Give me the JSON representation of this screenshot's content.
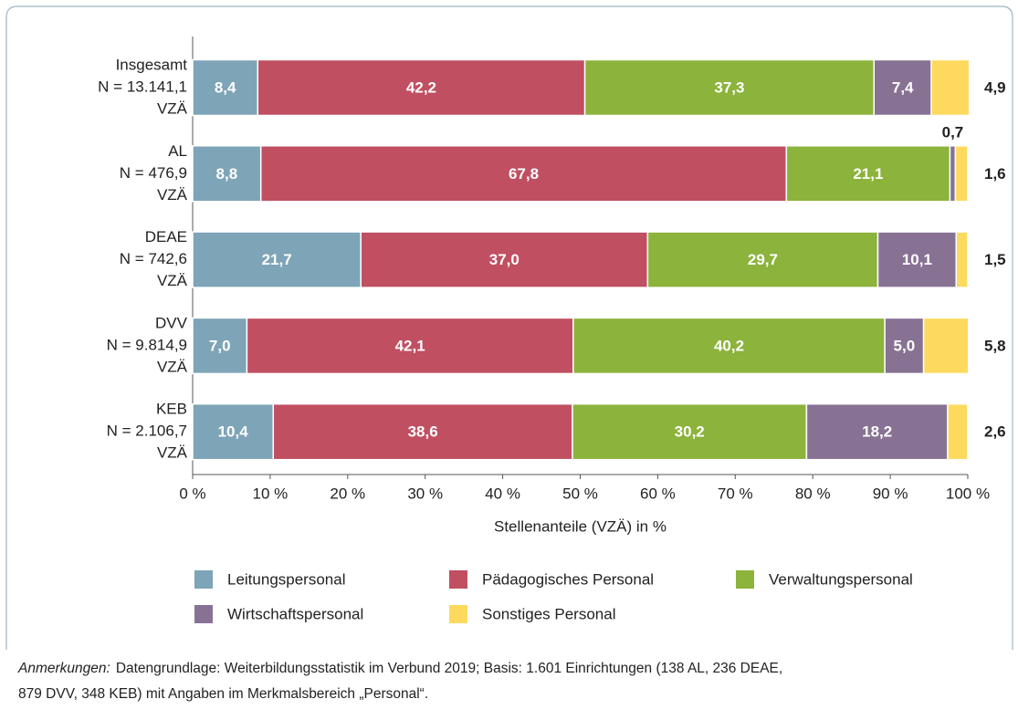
{
  "chart_data": {
    "type": "stacked-bar-horizontal",
    "categories": [
      [
        "Insgesamt",
        "N = 13.141,1",
        "VZÄ"
      ],
      [
        "AL",
        "N = 476,9",
        "VZÄ"
      ],
      [
        "DEAE",
        "N = 742,6",
        "VZÄ"
      ],
      [
        "DVV",
        "N = 9.814,9",
        "VZÄ"
      ],
      [
        "KEB",
        "N = 2.106,7",
        "VZÄ"
      ]
    ],
    "series": [
      {
        "name": "Leitungspersonal",
        "color": "#7ea4b7",
        "values": [
          8.4,
          8.8,
          21.7,
          7.0,
          10.4
        ],
        "value_labels": [
          "8,4",
          "8,8",
          "21,7",
          "7,0",
          "10,4"
        ]
      },
      {
        "name": "Pädagogisches Personal",
        "color": "#c04f61",
        "values": [
          42.2,
          67.8,
          37.0,
          42.1,
          38.6
        ],
        "value_labels": [
          "42,2",
          "67,8",
          "37,0",
          "42,1",
          "38,6"
        ]
      },
      {
        "name": "Verwaltungspersonal",
        "color": "#8cb33b",
        "values": [
          37.3,
          21.1,
          29.7,
          40.2,
          30.2
        ],
        "value_labels": [
          "37,3",
          "21,1",
          "29,7",
          "40,2",
          "30,2"
        ]
      },
      {
        "name": "Wirtschaftspersonal",
        "color": "#887294",
        "values": [
          7.4,
          0.7,
          10.1,
          5.0,
          18.2
        ],
        "value_labels": [
          "7,4",
          "0,7",
          "10,1",
          "5,0",
          "18,2"
        ]
      },
      {
        "name": "Sonstiges Personal",
        "color": "#fdd95e",
        "values": [
          4.9,
          1.6,
          1.5,
          5.8,
          2.6
        ],
        "value_labels": [
          "4,9",
          "1,6",
          "1,5",
          "5,8",
          "2,6"
        ]
      }
    ],
    "xlim": [
      0,
      100
    ],
    "xticks": [
      {
        "value": 0,
        "label": "0 %"
      },
      {
        "value": 10,
        "label": "10 %"
      },
      {
        "value": 20,
        "label": "20 %"
      },
      {
        "value": 30,
        "label": "30 %"
      },
      {
        "value": 40,
        "label": "40 %"
      },
      {
        "value": 50,
        "label": "50 %"
      },
      {
        "value": 60,
        "label": "60 %"
      },
      {
        "value": 70,
        "label": "70 %"
      },
      {
        "value": 80,
        "label": "80 %"
      },
      {
        "value": 90,
        "label": "90 %"
      },
      {
        "value": 100,
        "label": "100 %"
      }
    ],
    "x_label": "Stellenanteile (VZÄ) in %",
    "legend": "bottom",
    "note": {
      "label": "Anmerkungen:",
      "lines": [
        "Datengrundlage: Weiterbildungsstatistik im Verbund 2019; Basis: 1.601 Einrichtungen (138 AL, 236 DEAE,",
        "879 DVV, 348 KEB) mit Angaben im Merkmalsbereich „Personal“."
      ]
    }
  }
}
